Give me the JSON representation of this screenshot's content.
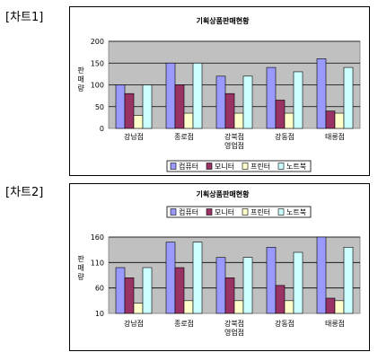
{
  "labels": {
    "chart1": "[차트1]",
    "chart2": "[차트2]"
  },
  "colors": {
    "컴퓨터": "#9999ff",
    "모니터": "#993366",
    "프린터": "#ffffcc",
    "노트북": "#ccffff",
    "plot_bg": "#c0c0c0"
  },
  "chart_data": [
    {
      "type": "bar",
      "title": "기획상품판매현황",
      "xlabel": "영업점",
      "ylabel": "판매량",
      "categories": [
        "강남점",
        "종로점",
        "강북점",
        "강동점",
        "태릉점"
      ],
      "series": [
        {
          "name": "컴퓨터",
          "values": [
            100,
            150,
            120,
            140,
            160
          ]
        },
        {
          "name": "모니터",
          "values": [
            80,
            100,
            80,
            65,
            40
          ]
        },
        {
          "name": "프린터",
          "values": [
            30,
            35,
            35,
            35,
            35
          ]
        },
        {
          "name": "노트북",
          "values": [
            100,
            150,
            120,
            130,
            140
          ]
        }
      ],
      "yticks": [
        0,
        50,
        100,
        150,
        200
      ],
      "ylim": [
        0,
        200
      ],
      "grid": true,
      "legend": "bottom"
    },
    {
      "type": "bar",
      "title": "기획상품판매현황",
      "xlabel": "영업점",
      "ylabel": "판매량",
      "categories": [
        "강남점",
        "종로점",
        "강북점",
        "강동점",
        "태릉점"
      ],
      "series": [
        {
          "name": "컴퓨터",
          "values": [
            100,
            150,
            120,
            140,
            160
          ]
        },
        {
          "name": "모니터",
          "values": [
            80,
            100,
            80,
            65,
            40
          ]
        },
        {
          "name": "프린터",
          "values": [
            30,
            35,
            35,
            35,
            35
          ]
        },
        {
          "name": "노트북",
          "values": [
            100,
            150,
            120,
            130,
            140
          ]
        }
      ],
      "yticks": [
        10,
        60,
        110,
        160
      ],
      "ylim": [
        10,
        160
      ],
      "grid": true,
      "legend": "top"
    }
  ]
}
